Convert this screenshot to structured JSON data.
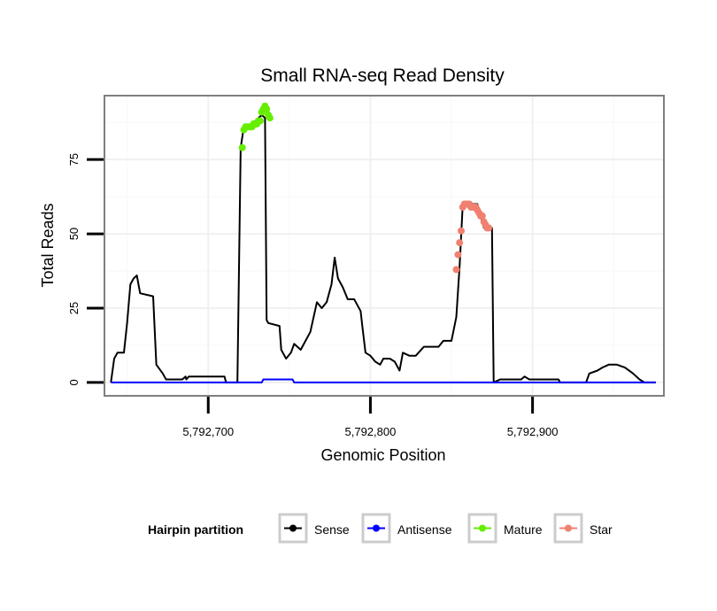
{
  "chart_data": {
    "type": "line",
    "title": "Small RNA-seq Read Density",
    "xlabel": "Genomic Position",
    "ylabel": "Total Reads",
    "xlim": [
      5792636,
      5792981
    ],
    "ylim": [
      -4.5,
      96.5
    ],
    "x_ticks": [
      5792700,
      5792800,
      5792900
    ],
    "x_tick_labels": [
      "5,792,700",
      "5,792,800",
      "5,792,900"
    ],
    "y_ticks": [
      0,
      25,
      50,
      75
    ],
    "y_tick_labels": [
      "0",
      "25",
      "50",
      "75"
    ],
    "grid": true,
    "legend": {
      "title": "Hairpin partition",
      "position": "bottom",
      "entries": [
        {
          "name": "Sense",
          "color": "#000000"
        },
        {
          "name": "Antisense",
          "color": "#0000ff"
        },
        {
          "name": "Mature",
          "color": "#66ee00"
        },
        {
          "name": "Star",
          "color": "#f08070"
        }
      ]
    },
    "series": [
      {
        "name": "Sense",
        "color": "#000000",
        "mark": "line",
        "points": [
          [
            5792640,
            0
          ],
          [
            5792642,
            8
          ],
          [
            5792644,
            10
          ],
          [
            5792648,
            10
          ],
          [
            5792650,
            20
          ],
          [
            5792652,
            33
          ],
          [
            5792654,
            35
          ],
          [
            5792656,
            36
          ],
          [
            5792658,
            30
          ],
          [
            5792666,
            29
          ],
          [
            5792668,
            6
          ],
          [
            5792672,
            3
          ],
          [
            5792674,
            1
          ],
          [
            5792684,
            1
          ],
          [
            5792686,
            2
          ],
          [
            5792686.5,
            1
          ],
          [
            5792688,
            2
          ],
          [
            5792710,
            2
          ],
          [
            5792711,
            0
          ],
          [
            5792718,
            0
          ],
          [
            5792720,
            79
          ],
          [
            5792722,
            86
          ],
          [
            5792726,
            86
          ],
          [
            5792727,
            87
          ],
          [
            5792729,
            88
          ],
          [
            5792733,
            90
          ],
          [
            5792735,
            89
          ],
          [
            5792736,
            21
          ],
          [
            5792737,
            20
          ],
          [
            5792744,
            19
          ],
          [
            5792745,
            11
          ],
          [
            5792748,
            8
          ],
          [
            5792751,
            10
          ],
          [
            5792753,
            13
          ],
          [
            5792757,
            11
          ],
          [
            5792763,
            17
          ],
          [
            5792767,
            27
          ],
          [
            5792770,
            25
          ],
          [
            5792773,
            27
          ],
          [
            5792776,
            33
          ],
          [
            5792778,
            42
          ],
          [
            5792780,
            35
          ],
          [
            5792783,
            32
          ],
          [
            5792786,
            28
          ],
          [
            5792790,
            28
          ],
          [
            5792794,
            24
          ],
          [
            5792795,
            19
          ],
          [
            5792797,
            10
          ],
          [
            5792800,
            9
          ],
          [
            5792803,
            7
          ],
          [
            5792806,
            6
          ],
          [
            5792808,
            8
          ],
          [
            5792812,
            8
          ],
          [
            5792815,
            7
          ],
          [
            5792818,
            4
          ],
          [
            5792820,
            10
          ],
          [
            5792824,
            9
          ],
          [
            5792828,
            9
          ],
          [
            5792833,
            12
          ],
          [
            5792838,
            12
          ],
          [
            5792842,
            12
          ],
          [
            5792845,
            14
          ],
          [
            5792850,
            14
          ],
          [
            5792853,
            22
          ],
          [
            5792855,
            39
          ],
          [
            5792857,
            60
          ],
          [
            5792866,
            60
          ],
          [
            5792870,
            52
          ],
          [
            5792875,
            52
          ],
          [
            5792876,
            0
          ],
          [
            5792880,
            1
          ],
          [
            5792893,
            1
          ],
          [
            5792895,
            2
          ],
          [
            5792898,
            1
          ],
          [
            5792916,
            1
          ],
          [
            5792917,
            0
          ],
          [
            5792933,
            0
          ],
          [
            5792935,
            3
          ],
          [
            5792940,
            4
          ],
          [
            5792943,
            5
          ],
          [
            5792947,
            6
          ],
          [
            5792952,
            6
          ],
          [
            5792957,
            5
          ],
          [
            5792962,
            3
          ],
          [
            5792966,
            1
          ],
          [
            5792969,
            0
          ],
          [
            5792976,
            0
          ]
        ]
      },
      {
        "name": "Antisense",
        "color": "#0000ff",
        "mark": "line",
        "points": [
          [
            5792640,
            0
          ],
          [
            5792733,
            0
          ],
          [
            5792734,
            1
          ],
          [
            5792752,
            1
          ],
          [
            5792753,
            0
          ],
          [
            5792976,
            0
          ]
        ]
      },
      {
        "name": "Mature",
        "color": "#66ee00",
        "mark": "points",
        "points": [
          [
            5792721,
            79
          ],
          [
            5792722,
            85
          ],
          [
            5792723,
            86
          ],
          [
            5792724,
            86
          ],
          [
            5792725,
            86
          ],
          [
            5792726,
            86
          ],
          [
            5792727,
            86
          ],
          [
            5792728,
            87
          ],
          [
            5792729,
            87
          ],
          [
            5792730,
            87
          ],
          [
            5792731,
            88
          ],
          [
            5792732,
            88
          ],
          [
            5792733,
            91
          ],
          [
            5792734,
            92
          ],
          [
            5792735,
            93
          ],
          [
            5792736,
            92
          ],
          [
            5792737,
            90
          ],
          [
            5792738,
            89
          ]
        ]
      },
      {
        "name": "Star",
        "color": "#f08070",
        "mark": "points",
        "points": [
          [
            5792853,
            38
          ],
          [
            5792854,
            43
          ],
          [
            5792855,
            47
          ],
          [
            5792856,
            51
          ],
          [
            5792857,
            59
          ],
          [
            5792858,
            60
          ],
          [
            5792859,
            60
          ],
          [
            5792860,
            60
          ],
          [
            5792861,
            60
          ],
          [
            5792862,
            59
          ],
          [
            5792863,
            59
          ],
          [
            5792864,
            59
          ],
          [
            5792865,
            59
          ],
          [
            5792866,
            58
          ],
          [
            5792867,
            57
          ],
          [
            5792868,
            56
          ],
          [
            5792869,
            56
          ],
          [
            5792870,
            54
          ],
          [
            5792871,
            53
          ],
          [
            5792872,
            52
          ],
          [
            5792873,
            52
          ]
        ]
      }
    ]
  }
}
